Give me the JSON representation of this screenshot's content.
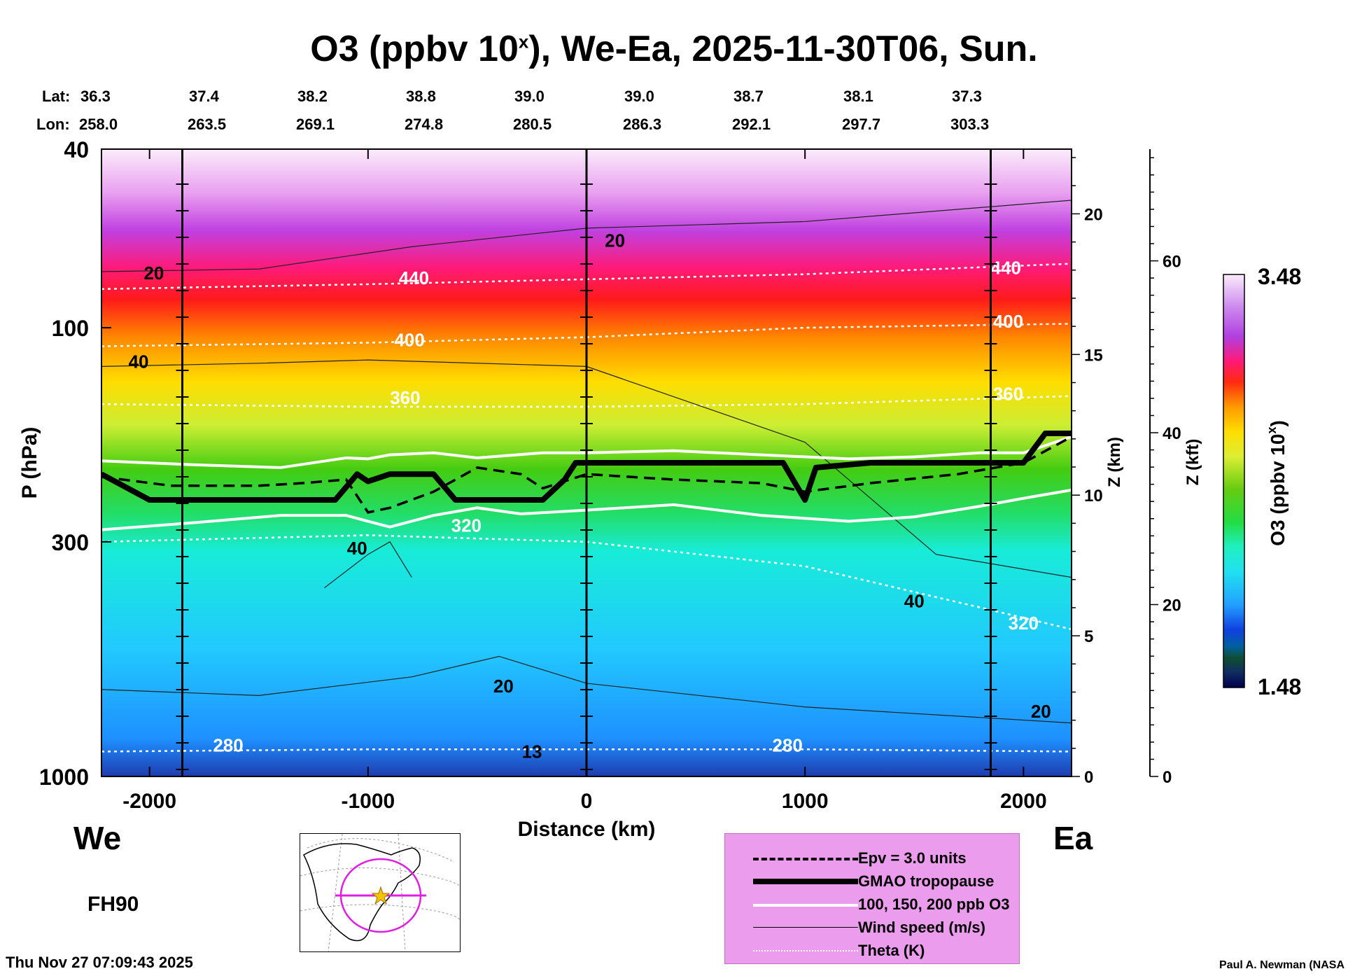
{
  "title": {
    "main": "O3 (ppbv 10",
    "sup": "x",
    "rest": "), We-Ea, 2025-11-30T06, Sun."
  },
  "header": {
    "lat_label": "Lat:",
    "lon_label": "Lon:",
    "lat": [
      "36.3",
      "37.4",
      "38.2",
      "38.8",
      "39.0",
      "39.0",
      "38.7",
      "38.1",
      "37.3"
    ],
    "lon": [
      "258.0",
      "263.5",
      "269.1",
      "274.8",
      "280.5",
      "286.3",
      "292.1",
      "297.7",
      "303.3"
    ]
  },
  "direction": {
    "west": "We",
    "east": "Ea"
  },
  "forecast_hour": "FH90",
  "timestamp": "Thu Nov 27 07:09:43 2025",
  "credit": "Paul A. Newman (NASA",
  "colors": {
    "tropopause": "#000000",
    "ozone_contour": "#ffffff",
    "theta": "#ffffff",
    "wind": "#222222",
    "legend_bg": "#ec9ced",
    "circle": "#e020e0",
    "star": "#f5c400"
  },
  "legend": [
    {
      "style": "dashed",
      "label": "Epv = 3.0 units"
    },
    {
      "style": "thick",
      "label": "GMAO tropopause"
    },
    {
      "style": "white",
      "label": "100, 150, 200 ppb O3"
    },
    {
      "style": "thin",
      "label": "Wind speed (m/s)"
    },
    {
      "style": "dotted",
      "label": "Theta (K)"
    }
  ],
  "chart_data": {
    "type": "heatmap",
    "title": "O3 (ppbv 10^x), We-Ea, 2025-11-30T06, Sun.",
    "xlabel": "Distance (km)",
    "ylabel": "P (hPa)",
    "xlim": [
      -2220,
      2220
    ],
    "ylim_hpa": [
      1000,
      40
    ],
    "x_ticks": [
      -2000,
      -1000,
      0,
      1000,
      2000
    ],
    "x_tick_labels": [
      "-2000",
      "-1000",
      "0",
      "1000",
      "2000"
    ],
    "y_ticks": [
      40,
      100,
      300,
      1000
    ],
    "y_tick_labels": [
      "40",
      "100",
      "300",
      "1000"
    ],
    "z_km_axis": {
      "label": "Z (km)",
      "ticks": [
        0,
        5,
        10,
        15,
        20
      ],
      "tick_labels": [
        "0",
        "5",
        "10",
        "15",
        "20"
      ],
      "range": [
        0,
        22.3
      ]
    },
    "z_kft_axis": {
      "label": "Z (kft)",
      "ticks": [
        0,
        20,
        40,
        60
      ],
      "tick_labels": [
        "0",
        "20",
        "40",
        "60"
      ],
      "range": [
        0,
        73
      ]
    },
    "colorbar": {
      "label": "O3 (ppbv 10",
      "label_sup": "x",
      "label_end": ")",
      "min": 1.48,
      "max": 3.48,
      "min_label": "1.48",
      "max_label": "3.48"
    },
    "vertical_markers_km": [
      -1850,
      0,
      1850
    ],
    "tropopause": {
      "x": [
        -2220,
        -2000,
        -1750,
        -1500,
        -1150,
        -1050,
        -1000,
        -900,
        -700,
        -600,
        -400,
        -200,
        -100,
        -50,
        300,
        700,
        900,
        1000,
        1050,
        1300,
        1700,
        2000,
        2100,
        2220
      ],
      "hpa": [
        212,
        242,
        242,
        242,
        242,
        212,
        220,
        212,
        212,
        242,
        242,
        242,
        218,
        200,
        200,
        200,
        200,
        242,
        205,
        200,
        200,
        200,
        172,
        172
      ]
    },
    "epv_3": {
      "x": [
        -2220,
        -1900,
        -1500,
        -1300,
        -1100,
        -1000,
        -900,
        -700,
        -500,
        -300,
        -200,
        0,
        400,
        800,
        1000,
        1300,
        1700,
        2000,
        2220
      ],
      "hpa": [
        215,
        225,
        225,
        222,
        218,
        258,
        252,
        232,
        205,
        212,
        228,
        212,
        218,
        222,
        232,
        222,
        212,
        200,
        175
      ]
    },
    "ozone_contours_ppb": [
      {
        "level": "100",
        "x": [
          -2220,
          -1800,
          -1400,
          -1100,
          -1000,
          -900,
          -700,
          -500,
          -200,
          0,
          400,
          800,
          1200,
          1500,
          1800,
          2000,
          2220
        ],
        "hpa": [
          198,
          202,
          205,
          195,
          196,
          192,
          190,
          195,
          190,
          190,
          188,
          192,
          196,
          194,
          190,
          190,
          175
        ]
      },
      {
        "level": "150",
        "x": [
          -2220,
          -1800,
          -1400,
          -1100,
          -1000,
          -900,
          -700,
          -500,
          -300,
          0,
          400,
          800,
          1200,
          1500,
          1800,
          2000,
          2220
        ],
        "hpa": [
          282,
          272,
          262,
          262,
          270,
          278,
          262,
          252,
          260,
          255,
          248,
          262,
          270,
          264,
          250,
          240,
          230
        ]
      }
    ],
    "theta_K": [
      {
        "level": "280",
        "x": [
          -2220,
          -1000,
          0,
          1000,
          2220
        ],
        "hpa": [
          880,
          870,
          870,
          870,
          880
        ]
      },
      {
        "level": "320",
        "x": [
          -2220,
          -1000,
          0,
          1000,
          1800,
          2220
        ],
        "hpa": [
          300,
          290,
          300,
          340,
          420,
          470
        ]
      },
      {
        "level": "360",
        "x": [
          -2220,
          -1000,
          0,
          1000,
          2220
        ],
        "hpa": [
          148,
          150,
          150,
          148,
          142
        ]
      },
      {
        "level": "400",
        "x": [
          -2220,
          -1000,
          0,
          1000,
          2220
        ],
        "hpa": [
          110,
          108,
          105,
          100,
          98
        ]
      },
      {
        "level": "440",
        "x": [
          -2220,
          -1000,
          0,
          1000,
          2220
        ],
        "hpa": [
          82,
          80,
          78,
          76,
          72
        ]
      }
    ],
    "wind_speed_ms": [
      {
        "level": "20",
        "x": [
          -2220,
          -1500,
          -800,
          0,
          1000,
          2220
        ],
        "hpa": [
          75,
          74,
          66,
          60,
          58,
          52
        ]
      },
      {
        "level": "40",
        "x": [
          -2220,
          -1500,
          -1000,
          0,
          1000,
          1600,
          2220
        ],
        "hpa": [
          122,
          120,
          118,
          122,
          180,
          320,
          360
        ]
      },
      {
        "level": "40",
        "x": [
          -1200,
          -1000,
          -900,
          -800
        ],
        "hpa": [
          380,
          320,
          300,
          360
        ]
      },
      {
        "level": "20",
        "x": [
          -2220,
          -1500,
          -800,
          -400,
          0,
          1000,
          2220
        ],
        "hpa": [
          640,
          660,
          600,
          540,
          620,
          700,
          760
        ]
      }
    ],
    "annotations": [
      "20",
      "40",
      "440",
      "400",
      "360",
      "320",
      "280",
      "40",
      "20",
      "13"
    ]
  }
}
